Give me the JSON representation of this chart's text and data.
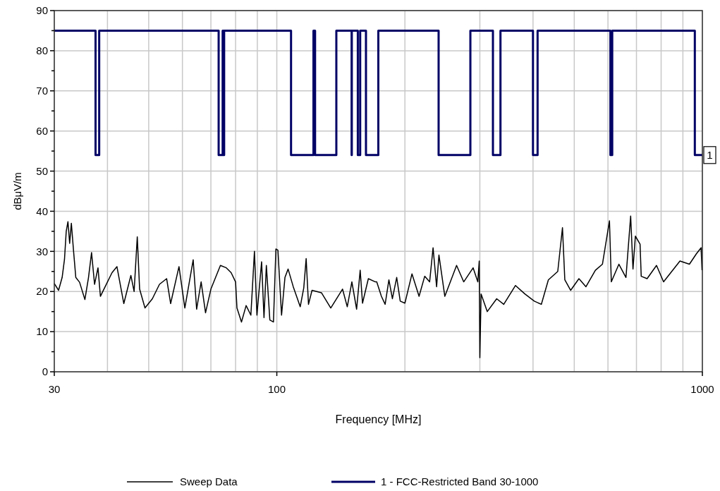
{
  "chart_data": {
    "type": "line",
    "xlabel": "Frequency [MHz]",
    "ylabel": "dBμV/m",
    "log": "x",
    "xlim": [
      30,
      1000
    ],
    "ylim": [
      0,
      90
    ],
    "xticks": [
      30,
      {
        "value": 40,
        "label": null
      },
      {
        "value": 50,
        "label": null
      },
      {
        "value": 60,
        "label": null
      },
      {
        "value": 70,
        "label": null
      },
      {
        "value": 80,
        "label": null
      },
      {
        "value": 90,
        "label": null
      },
      100,
      {
        "value": 200,
        "label": null
      },
      {
        "value": 300,
        "label": null
      },
      {
        "value": 400,
        "label": null
      },
      {
        "value": 500,
        "label": null
      },
      {
        "value": 600,
        "label": null
      },
      {
        "value": 700,
        "label": null
      },
      {
        "value": 800,
        "label": null
      },
      {
        "value": 900,
        "label": null
      },
      1000
    ],
    "yticks": [
      0,
      {
        "value": 5,
        "label": null
      },
      10,
      {
        "value": 15,
        "label": null
      },
      20,
      {
        "value": 25,
        "label": null
      },
      30,
      {
        "value": 35,
        "label": null
      },
      40,
      {
        "value": 45,
        "label": null
      },
      50,
      {
        "value": 55,
        "label": null
      },
      60,
      {
        "value": 65,
        "label": null
      },
      70,
      {
        "value": 75,
        "label": null
      },
      80,
      {
        "value": 85,
        "label": null
      },
      90
    ],
    "grid": true,
    "legend": "bottom",
    "marker": "none",
    "line_style": "solid",
    "annotations": [
      {
        "text": "1",
        "x": 1000,
        "y": 54
      }
    ],
    "series": [
      {
        "name": "Sweep Data",
        "color": "#000000",
        "x": [
          30,
          30.7,
          31.3,
          31.7,
          32,
          32.3,
          32.6,
          32.9,
          33.3,
          33.7,
          34.4,
          35.4,
          36.1,
          36.7,
          37.3,
          38,
          38.5,
          39.5,
          41,
          42.1,
          43.7,
          45.4,
          46.2,
          47,
          47.6,
          49,
          51,
          53,
          55.1,
          56.3,
          58.9,
          60.8,
          63.6,
          64.8,
          66.4,
          68,
          70,
          71.8,
          73.7,
          76.1,
          78.1,
          80,
          80.6,
          82.6,
          84.7,
          86.9,
          88.6,
          89.8,
          92.1,
          93.3,
          94.5,
          96.3,
          98.2,
          99.5,
          100.6,
          102.6,
          104.5,
          106.3,
          109.3,
          113.5,
          115.7,
          117.2,
          118.7,
          121,
          127.3,
          133.9,
          142.7,
          146.4,
          150.1,
          154,
          157,
          159,
          164.1,
          170.5,
          171.7,
          176.1,
          179.7,
          183.4,
          186.9,
          191.3,
          195,
          200,
          207.8,
          215.9,
          222.6,
          228.6,
          232.9,
          237.4,
          240.4,
          248.2,
          264.5,
          274.9,
          289.3,
          296.7,
          299,
          300,
          302,
          312.3,
          328.6,
          341.4,
          363.8,
          382.7,
          402.8,
          418.4,
          434.6,
          457.3,
          469.1,
          475.1,
          490.4,
          512.8,
          532.7,
          560.5,
          582.3,
          604.9,
          611,
          636.6,
          661.4,
          678.4,
          687,
          695.9,
          713.8,
          718.3,
          741.5,
          780.3,
          810.6,
          885.8,
          932.3,
          968.2,
          993,
          998
        ],
        "values": [
          22,
          20.3,
          23.5,
          28,
          35,
          37.4,
          32,
          37,
          30,
          23.5,
          22.3,
          18,
          23.5,
          29.7,
          21.8,
          25.9,
          18.8,
          21.2,
          24.7,
          26.2,
          17,
          24,
          20,
          33.6,
          20.6,
          15.9,
          18.2,
          21.8,
          23.2,
          17,
          26.2,
          15.9,
          27.9,
          15.6,
          22.4,
          14.7,
          20.6,
          23.5,
          26.5,
          25.9,
          24.7,
          22.4,
          15.9,
          12.4,
          16.5,
          14.1,
          30,
          14.1,
          27.4,
          13.5,
          26.5,
          12.9,
          12.4,
          30.6,
          30.3,
          14.1,
          23.5,
          25.6,
          21.2,
          16.2,
          20.9,
          28.2,
          16.8,
          20.3,
          19.7,
          15.9,
          20.6,
          16.2,
          22.4,
          15.6,
          25.3,
          17.1,
          23.2,
          22.4,
          22.4,
          18.8,
          16.8,
          22.9,
          18.2,
          23.5,
          17.6,
          17.1,
          24.4,
          18.8,
          23.8,
          22.4,
          30.9,
          21.2,
          29.1,
          18.8,
          26.5,
          22.4,
          25.9,
          22.4,
          27.6,
          3.5,
          19.4,
          15,
          18.2,
          16.8,
          21.5,
          19.4,
          17.6,
          16.8,
          22.9,
          25,
          35.9,
          22.9,
          20.3,
          23.2,
          21.2,
          25.3,
          26.8,
          37.6,
          22.4,
          26.8,
          23.5,
          38.8,
          25.6,
          33.8,
          31.8,
          23.8,
          23.2,
          26.5,
          22.4,
          27.6,
          26.8,
          29.4,
          30.9,
          25.3
        ]
      },
      {
        "name": "1 - FCC-Restricted Band 30-1000",
        "color": "#000066",
        "x": [
          30,
          37.5,
          37.5,
          38.25,
          38.25,
          73,
          73,
          74.6,
          74.6,
          74.8,
          74.8,
          75.2,
          75.2,
          108,
          108,
          121.94,
          121.94,
          123,
          123,
          138,
          138,
          149.9,
          149.9,
          150.05,
          150.05,
          155,
          155,
          157,
          157,
          162,
          162,
          173.2,
          173.2,
          240,
          240,
          285,
          285,
          322,
          322,
          335.4,
          335.4,
          399.9,
          399.9,
          410,
          410,
          608,
          608,
          614,
          614,
          960,
          960,
          1000
        ],
        "values": [
          85,
          85,
          54,
          54,
          85,
          85,
          54,
          54,
          85,
          85,
          54,
          54,
          85,
          85,
          54,
          54,
          85,
          85,
          54,
          54,
          85,
          85,
          54,
          54,
          85,
          85,
          54,
          54,
          85,
          85,
          54,
          54,
          85,
          85,
          54,
          54,
          85,
          85,
          54,
          54,
          85,
          85,
          54,
          54,
          85,
          85,
          54,
          54,
          85,
          85,
          54,
          54
        ]
      }
    ]
  }
}
